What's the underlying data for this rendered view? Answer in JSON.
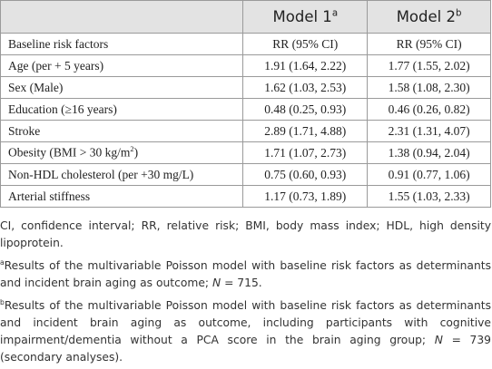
{
  "table": {
    "header": [
      {
        "label": "Model 1",
        "sup": "a"
      },
      {
        "label": "Model 2",
        "sup": "b"
      }
    ],
    "rows": [
      {
        "label": "Baseline risk factors",
        "values": [
          "RR (95% CI)",
          "RR (95% CI)"
        ]
      },
      {
        "label": "Age (per + 5 years)",
        "values": [
          "1.91 (1.64, 2.22)",
          "1.77 (1.55, 2.02)"
        ]
      },
      {
        "label": "Sex (Male)",
        "values": [
          "1.62 (1.03, 2.53)",
          "1.58 (1.08, 2.30)"
        ]
      },
      {
        "label": "Education (≥16 years)",
        "values": [
          "0.48 (0.25, 0.93)",
          "0.46 (0.26, 0.82)"
        ]
      },
      {
        "label": "Stroke",
        "values": [
          "2.89 (1.71, 4.88)",
          "2.31 (1.31, 4.07)"
        ]
      },
      {
        "label": "Obesity (BMI > 30 kg/m",
        "label_sup": "2",
        "label_after": ")",
        "values": [
          "1.71 (1.07, 2.73)",
          "1.38 (0.94, 2.04)"
        ]
      },
      {
        "label": "Non-HDL cholesterol (per +30 mg/L)",
        "values": [
          "0.75 (0.60, 0.93)",
          "0.91 (0.77, 1.06)"
        ]
      },
      {
        "label": "Arterial stiffness",
        "values": [
          "1.17 (0.73, 1.89)",
          "1.55 (1.03, 2.33)"
        ]
      }
    ]
  },
  "footnotes": [
    {
      "text": "CI, confidence interval; RR, relative risk; BMI, body mass index; HDL, high density lipoprotein."
    },
    {
      "mark": "a",
      "text": "Results of the multivariable Poisson model with baseline risk factors as determinants and incident brain aging as outcome; ",
      "italic": "N",
      "after": " = 715."
    },
    {
      "mark": "b",
      "text": "Results of the multivariable Poisson model with baseline risk factors as determinants and incident brain aging as outcome, including participants with cognitive impairment/dementia without a PCA score in the brain aging group; ",
      "italic": "N",
      "after": " = 739 (secondary analyses)."
    }
  ]
}
